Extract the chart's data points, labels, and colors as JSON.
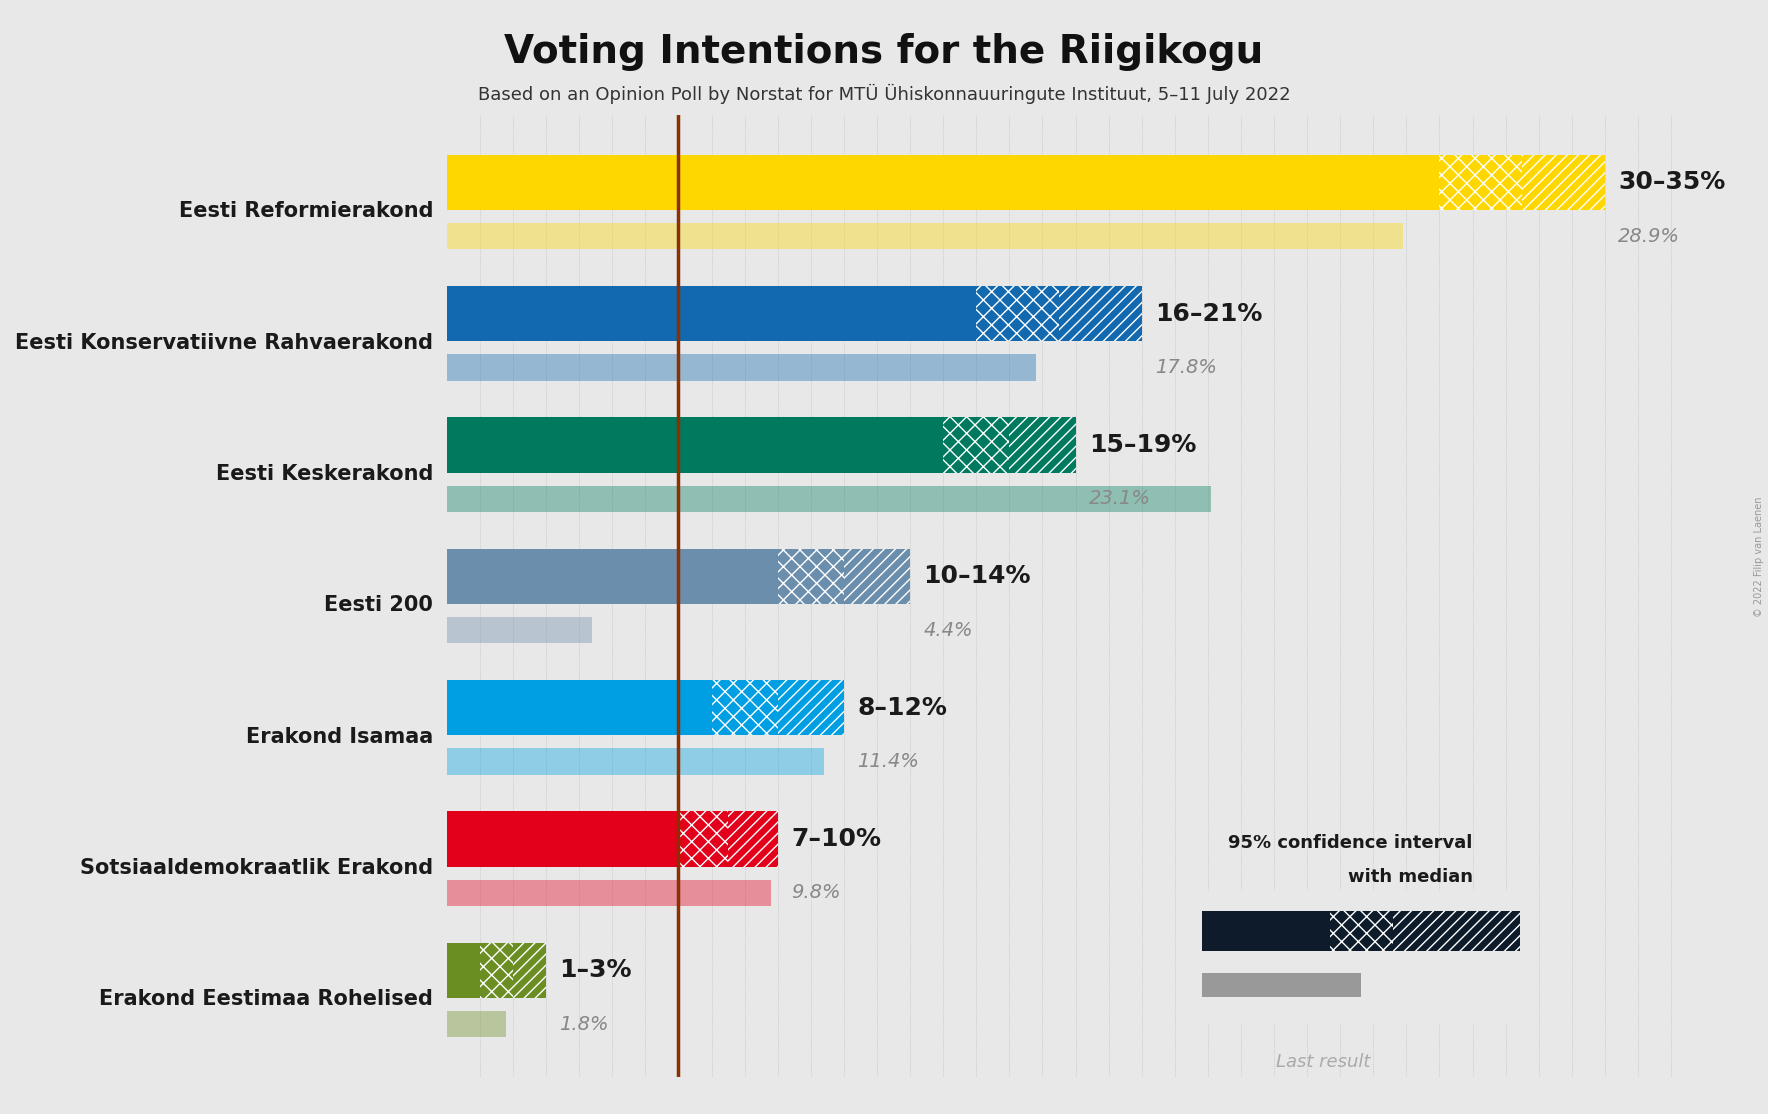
{
  "title": "Voting Intentions for the Riigikogu",
  "subtitle": "Based on an Opinion Poll by Norstat for MTÜ Ühiskonnauuringute Instituut, 5–11 July 2022",
  "copyright": "© 2022 Filip van Laenen",
  "background_color": "#e8e8e8",
  "parties": [
    {
      "name": "Eesti Reformierakond",
      "ci_low": 30,
      "ci_high": 35,
      "median": 32.5,
      "last_result": 28.9,
      "color": "#FFD700",
      "label": "30–35%",
      "last_label": "28.9%"
    },
    {
      "name": "Eesti Konservatiivne Rahvaerakond",
      "ci_low": 16,
      "ci_high": 21,
      "median": 18.5,
      "last_result": 17.8,
      "color": "#1269B0",
      "label": "16–21%",
      "last_label": "17.8%"
    },
    {
      "name": "Eesti Keskerakond",
      "ci_low": 15,
      "ci_high": 19,
      "median": 17,
      "last_result": 23.1,
      "color": "#007A5E",
      "label": "15–19%",
      "last_label": "23.1%"
    },
    {
      "name": "Eesti 200",
      "ci_low": 10,
      "ci_high": 14,
      "median": 12,
      "last_result": 4.4,
      "color": "#6C8EAD",
      "label": "10–14%",
      "last_label": "4.4%"
    },
    {
      "name": "Erakond Isamaa",
      "ci_low": 8,
      "ci_high": 12,
      "median": 10,
      "last_result": 11.4,
      "color": "#009FE3",
      "label": "8–12%",
      "last_label": "11.4%"
    },
    {
      "name": "Sotsiaaldemokraatlik Erakond",
      "ci_low": 7,
      "ci_high": 10,
      "median": 8.5,
      "last_result": 9.8,
      "color": "#E3001B",
      "label": "7–10%",
      "last_label": "9.8%"
    },
    {
      "name": "Erakond Eestimaa Rohelised",
      "ci_low": 1,
      "ci_high": 3,
      "median": 2,
      "last_result": 1.8,
      "color": "#6B8E23",
      "label": "1–3%",
      "last_label": "1.8%"
    }
  ],
  "xlim": [
    0,
    38
  ],
  "median_line_color": "#8B3000",
  "label_fontsize": 18,
  "last_label_fontsize": 14,
  "title_fontsize": 28,
  "subtitle_fontsize": 13,
  "bar_height": 0.42,
  "last_bar_height": 0.2,
  "bar_gap": 0.1,
  "legend_ci_color": "#0D1B2A",
  "legend_last_color": "#999999"
}
